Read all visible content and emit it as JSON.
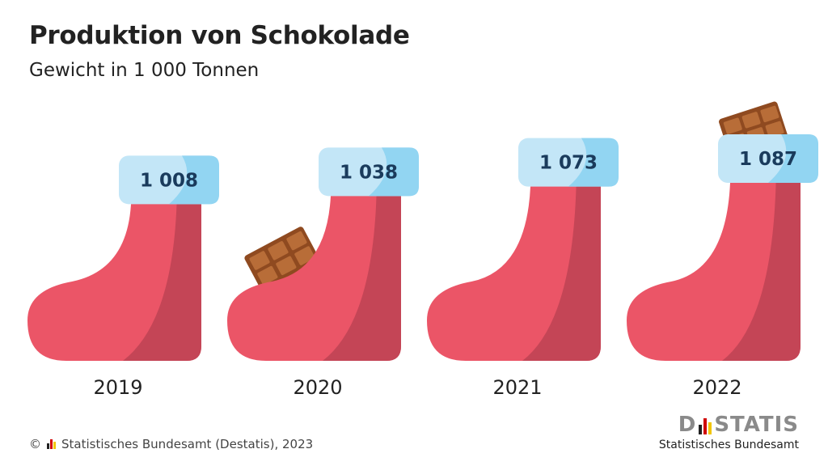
{
  "header": {
    "title": "Produktion von Schokolade",
    "subtitle": "Gewicht in 1 000 Tonnen"
  },
  "chart_data": {
    "type": "bar",
    "title": "Produktion von Schokolade",
    "subtitle": "Gewicht in 1 000 Tonnen",
    "categories": [
      "2019",
      "2020",
      "2021",
      "2022"
    ],
    "values": [
      1008,
      1038,
      1073,
      1087
    ],
    "value_labels": [
      "1 008",
      "1 038",
      "1 073",
      "1 087"
    ],
    "chocolate_bar_shown": [
      false,
      true,
      false,
      true
    ],
    "colors": {
      "stocking": "#eb5567",
      "stocking_shade": "#c44556",
      "cuff": "#c3e6f7",
      "cuff_shade": "#92d5f2",
      "label_text": "#1a3b5c",
      "chocolate": "#8f4a20",
      "chocolate_light": "#b86d38"
    }
  },
  "footer": {
    "copyright": "© ",
    "source": "Statistisches Bundesamt (Destatis), 2023"
  },
  "logo": {
    "word_left": "D",
    "word_right": "STATIS",
    "tagline": "Statistisches Bundesamt",
    "bar_colors": [
      "#222222",
      "#d00000",
      "#f2c500"
    ]
  }
}
